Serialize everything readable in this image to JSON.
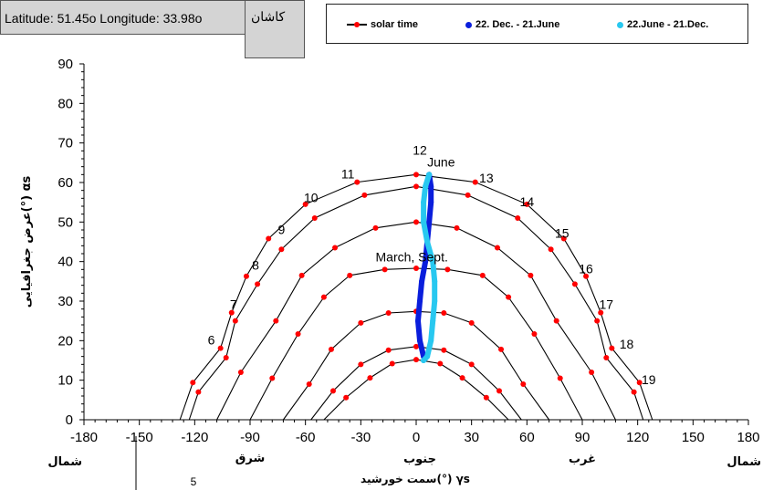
{
  "header": {
    "location_text": "Latitude: 51.45o   Longitude: 33.98o",
    "city": "کاشان"
  },
  "legend": {
    "solar_time": "solar time",
    "series_dec_june": "22. Dec. - 21.June",
    "series_june_dec": "22.June - 21.Dec."
  },
  "colors": {
    "solar_time": "#ff0000",
    "dec_june": "#0a1edc",
    "june_dec": "#28c8f0",
    "curve": "#000000"
  },
  "annotations": {
    "june": "June",
    "march_sept": "March, Sept.",
    "axis_south": "جنوب",
    "axis_east": "شرق",
    "axis_west": "غرب",
    "axis_north_left": "شمال",
    "axis_north_right": "شمال",
    "page_number": "5"
  },
  "chart_data": {
    "type": "line",
    "xlabel": "سمت خورشید(°) γs",
    "ylabel": "عرض جغرافیایی(°) αs",
    "xlim": [
      -180,
      180
    ],
    "ylim": [
      0,
      90
    ],
    "xticks": [
      -180,
      -150,
      -120,
      -90,
      -60,
      -30,
      0,
      30,
      60,
      90,
      120,
      150,
      180
    ],
    "yticks": [
      0,
      10,
      20,
      30,
      40,
      50,
      60,
      70,
      80,
      90
    ],
    "grid": false,
    "legend_position": "top",
    "day_curves": [
      {
        "points": [
          [
            -128,
            0
          ],
          [
            -121,
            9.4
          ],
          [
            -106,
            18.1
          ],
          [
            -100,
            27.1
          ],
          [
            -92,
            36.3
          ],
          [
            -80,
            45.8
          ],
          [
            -60,
            54.5
          ],
          [
            -32,
            60.1
          ],
          [
            0,
            62
          ],
          [
            32,
            60.1
          ],
          [
            60,
            54.5
          ],
          [
            80,
            45.8
          ],
          [
            92,
            36.3
          ],
          [
            100,
            27.1
          ],
          [
            106,
            18.1
          ],
          [
            121,
            9.4
          ],
          [
            128,
            0
          ]
        ]
      },
      {
        "points": [
          [
            -123,
            0
          ],
          [
            -118,
            7
          ],
          [
            -103,
            15.7
          ],
          [
            -98,
            25
          ],
          [
            -86,
            34.3
          ],
          [
            -73,
            43.1
          ],
          [
            -55,
            51
          ],
          [
            -28,
            56.8
          ],
          [
            0,
            59
          ],
          [
            28,
            56.8
          ],
          [
            55,
            51
          ],
          [
            73,
            43.1
          ],
          [
            86,
            34.3
          ],
          [
            98,
            25
          ],
          [
            103,
            15.7
          ],
          [
            118,
            7
          ],
          [
            123,
            0
          ]
        ]
      },
      {
        "points": [
          [
            -108,
            0
          ],
          [
            -95,
            12
          ],
          [
            -76,
            25
          ],
          [
            -62,
            36.5
          ],
          [
            -44,
            43.5
          ],
          [
            -22,
            48.5
          ],
          [
            0,
            50
          ],
          [
            22,
            48.5
          ],
          [
            44,
            43.5
          ],
          [
            62,
            36.5
          ],
          [
            76,
            25
          ],
          [
            95,
            12
          ],
          [
            108,
            0
          ]
        ]
      },
      {
        "points": [
          [
            -90,
            0
          ],
          [
            -78,
            10.5
          ],
          [
            -64,
            21.7
          ],
          [
            -50,
            31
          ],
          [
            -36,
            36.5
          ],
          [
            -17,
            38
          ],
          [
            0,
            38.3
          ],
          [
            17,
            38
          ],
          [
            36,
            36.5
          ],
          [
            50,
            31
          ],
          [
            64,
            21.7
          ],
          [
            78,
            10.5
          ],
          [
            90,
            0
          ]
        ]
      },
      {
        "points": [
          [
            -72,
            0
          ],
          [
            -58,
            9
          ],
          [
            -46,
            17.8
          ],
          [
            -30,
            24.5
          ],
          [
            -15,
            27
          ],
          [
            0,
            27.4
          ],
          [
            15,
            27
          ],
          [
            30,
            24.5
          ],
          [
            46,
            17.8
          ],
          [
            58,
            9
          ],
          [
            72,
            0
          ]
        ]
      },
      {
        "points": [
          [
            -57,
            0
          ],
          [
            -45,
            7.3
          ],
          [
            -30,
            14
          ],
          [
            -15,
            17.6
          ],
          [
            0,
            18.5
          ],
          [
            15,
            17.6
          ],
          [
            30,
            14
          ],
          [
            45,
            7.3
          ],
          [
            57,
            0
          ]
        ]
      },
      {
        "points": [
          [
            -50,
            0
          ],
          [
            -38,
            5.6
          ],
          [
            -25,
            10.6
          ],
          [
            -13,
            14.2
          ],
          [
            0,
            15.2
          ],
          [
            13,
            14.2
          ],
          [
            25,
            10.6
          ],
          [
            38,
            5.6
          ],
          [
            50,
            0
          ]
        ]
      }
    ],
    "hour_labels": [
      {
        "label": "6",
        "x": -111,
        "y": 19
      },
      {
        "label": "7",
        "x": -99,
        "y": 28
      },
      {
        "label": "8",
        "x": -87,
        "y": 38
      },
      {
        "label": "9",
        "x": -73,
        "y": 47
      },
      {
        "label": "10",
        "x": -57,
        "y": 55
      },
      {
        "label": "11",
        "x": -37,
        "y": 61
      },
      {
        "label": "12",
        "x": 2,
        "y": 67
      },
      {
        "label": "13",
        "x": 38,
        "y": 60
      },
      {
        "label": "14",
        "x": 60,
        "y": 54
      },
      {
        "label": "15",
        "x": 79,
        "y": 46
      },
      {
        "label": "16",
        "x": 92,
        "y": 37
      },
      {
        "label": "17",
        "x": 103,
        "y": 28
      },
      {
        "label": "18",
        "x": 114,
        "y": 18
      },
      {
        "label": "19",
        "x": 126,
        "y": 9
      }
    ],
    "series": [
      {
        "name": "22. Dec. - 21.June",
        "points": [
          [
            4,
            16
          ],
          [
            2,
            20
          ],
          [
            1,
            25
          ],
          [
            2,
            30
          ],
          [
            3,
            35
          ],
          [
            5,
            40
          ],
          [
            6,
            45
          ],
          [
            7,
            50
          ],
          [
            8,
            55
          ],
          [
            8,
            59
          ],
          [
            7,
            62
          ]
        ]
      },
      {
        "name": "22.June - 21.Dec.",
        "points": [
          [
            7,
            62
          ],
          [
            5,
            59
          ],
          [
            4,
            55
          ],
          [
            4,
            50
          ],
          [
            6,
            45
          ],
          [
            9,
            40
          ],
          [
            10,
            35
          ],
          [
            10,
            30
          ],
          [
            9,
            25
          ],
          [
            8,
            20
          ],
          [
            6,
            16
          ],
          [
            4,
            15
          ]
        ]
      }
    ]
  }
}
